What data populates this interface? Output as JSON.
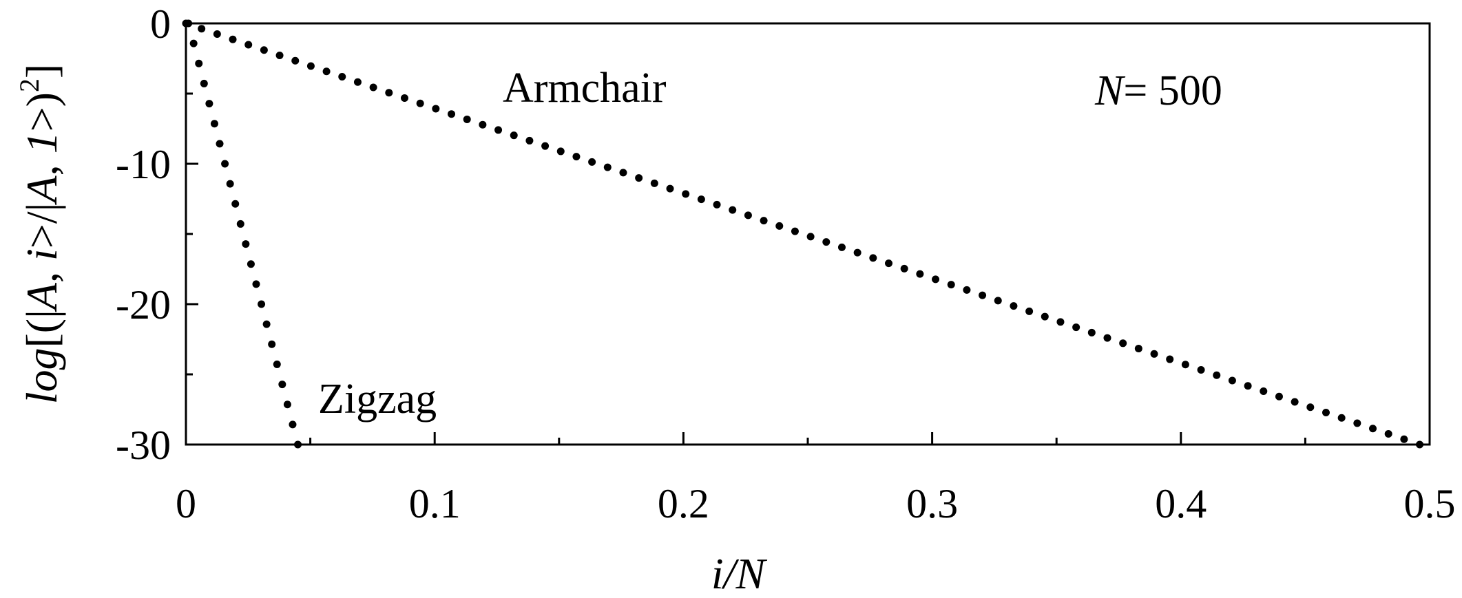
{
  "chart_data": {
    "type": "scatter",
    "title": "",
    "xlabel": "i/N",
    "ylabel": "log[(|A,i>/|A,1>)²]",
    "ylabel_parts": {
      "prefix": "log",
      "bracket_open": "[(|",
      "a1": "A",
      "comma1": ", ",
      "i": "i",
      "mid": ">/|",
      "a2": "A",
      "comma2": ", ",
      "one": "1",
      "close": ">)",
      "sup": "2",
      "bracket_close": "]"
    },
    "xlim": [
      0,
      0.5
    ],
    "ylim": [
      -30,
      0
    ],
    "x_ticks": [
      "0",
      "0.1",
      "0.2",
      "0.3",
      "0.4",
      "0.5"
    ],
    "x_tick_values": [
      0,
      0.1,
      0.2,
      0.3,
      0.4,
      0.5
    ],
    "y_ticks": [
      "0",
      "-10",
      "-20",
      "-30"
    ],
    "y_tick_values": [
      0,
      -10,
      -20,
      -30
    ],
    "grid": false,
    "series": [
      {
        "name": "Armchair",
        "x_start": 0.0,
        "x_end": 0.496,
        "y_start": 0,
        "y_end": -30,
        "points": 80
      },
      {
        "name": "Zigzag",
        "x_start": 0.001,
        "x_end": 0.045,
        "y_start": 0,
        "y_end": -30,
        "points": 22
      }
    ],
    "annotations": {
      "armchair": "Armchair",
      "zigzag": "Zigzag",
      "n_symbol": "N",
      "n_value": "= 500"
    }
  }
}
